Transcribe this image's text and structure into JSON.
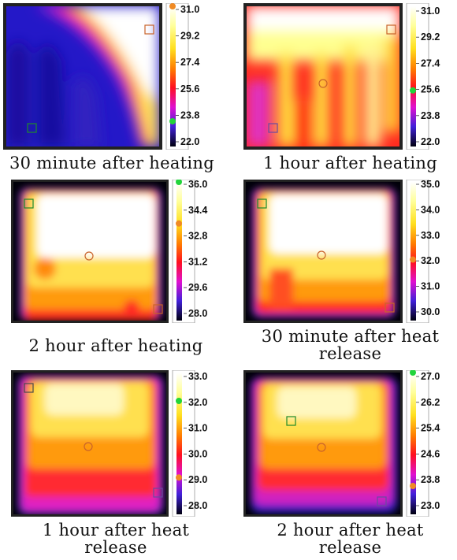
{
  "panels": [
    {
      "scale": [
        "31.0",
        "29.2",
        "27.4",
        "25.6",
        "23.8",
        "22.0"
      ],
      "caption": "30 minute after heating",
      "orange_marker": 0.0,
      "green_marker": 0.82,
      "map": "p1"
    },
    {
      "scale": [
        "31.0",
        "29.2",
        "27.4",
        "25.6",
        "23.8",
        "22.0"
      ],
      "caption": "1 hour after heating",
      "orange_marker": null,
      "green_marker": 0.6,
      "map": "p2"
    },
    {
      "scale": [
        "36.0",
        "34.4",
        "32.8",
        "31.2",
        "29.6",
        "28.0"
      ],
      "caption": "2 hour after heating",
      "orange_marker": 0.3,
      "green_marker": 0.0,
      "map": "p3"
    },
    {
      "scale": [
        "35.0",
        "34.0",
        "33.0",
        "32.0",
        "31.0",
        "30.0"
      ],
      "caption": "30 minute after heat\nrelease",
      "orange_marker": 0.56,
      "green_marker": null,
      "map": "p4"
    },
    {
      "scale": [
        "33.0",
        "32.0",
        "31.0",
        "30.0",
        "29.0",
        "28.0"
      ],
      "caption": "1 hour after heat\nrelease",
      "orange_marker": 0.74,
      "green_marker": 0.2,
      "map": "p5"
    },
    {
      "scale": [
        "27.0",
        "26.2",
        "25.4",
        "24.6",
        "23.8",
        "23.0"
      ],
      "caption": "2 hour after heat\nrelease",
      "orange_marker": 0.8,
      "green_marker": 0.0,
      "map": "p6"
    }
  ],
  "colors": {
    "orange_marker": "#f08a24",
    "green_marker": "#22d43a",
    "roi_orange": "#c9632a",
    "roi_green": "#1f8a2a",
    "roi_purple": "#6a4aa0",
    "border": "#222222"
  }
}
